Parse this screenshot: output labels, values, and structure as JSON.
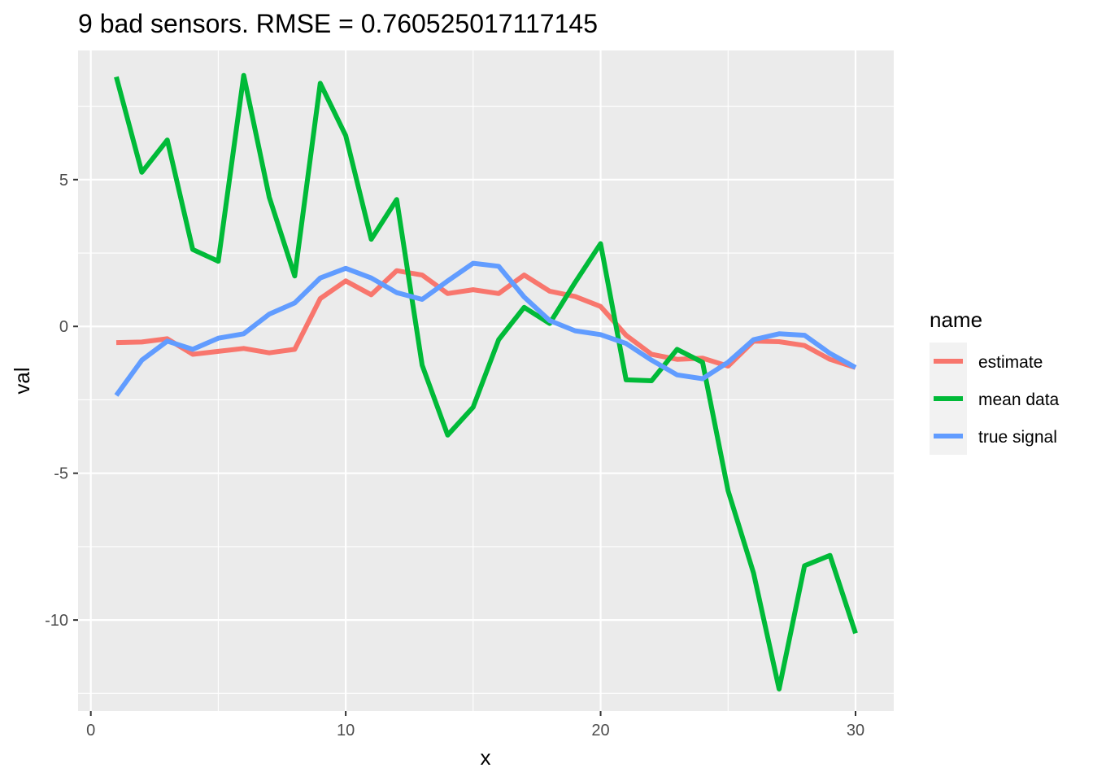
{
  "chart_data": {
    "type": "line",
    "title": "9 bad sensors. RMSE = 0.760525017117145",
    "xlabel": "x",
    "ylabel": "val",
    "xlim": [
      -0.5,
      31.5
    ],
    "ylim": [
      -13.1,
      9.4
    ],
    "x_ticks": [
      0,
      10,
      20,
      30
    ],
    "x_tick_labels": [
      "0",
      "10",
      "20",
      "30"
    ],
    "y_ticks": [
      5,
      0,
      -5,
      -10
    ],
    "y_tick_labels": [
      "5",
      "0",
      "-5",
      "-10"
    ],
    "x_minor_ticks": [
      5,
      15,
      25
    ],
    "y_minor_ticks": [
      7.5,
      2.5,
      -2.5,
      -7.5,
      -12.5
    ],
    "grid": true,
    "legend": {
      "title": "name",
      "placement": "right"
    },
    "x": [
      1,
      2,
      3,
      4,
      5,
      6,
      7,
      8,
      9,
      10,
      11,
      12,
      13,
      14,
      15,
      16,
      17,
      18,
      19,
      20,
      21,
      22,
      23,
      24,
      25,
      26,
      27,
      28,
      29,
      30
    ],
    "series": [
      {
        "name": "estimate",
        "color": "#F8766D",
        "values": [
          -0.55,
          -0.53,
          -0.42,
          -0.95,
          -0.85,
          -0.75,
          -0.9,
          -0.78,
          0.95,
          1.55,
          1.08,
          1.9,
          1.75,
          1.12,
          1.25,
          1.12,
          1.75,
          1.2,
          1.02,
          0.68,
          -0.3,
          -0.95,
          -1.12,
          -1.08,
          -1.35,
          -0.5,
          -0.52,
          -0.65,
          -1.12,
          -1.4
        ]
      },
      {
        "name": "mean data",
        "color": "#00BA38",
        "values": [
          8.5,
          5.25,
          6.35,
          2.62,
          2.22,
          8.55,
          4.4,
          1.72,
          8.28,
          6.5,
          2.97,
          4.32,
          -1.32,
          -3.7,
          -2.75,
          -0.45,
          0.65,
          0.1,
          1.5,
          2.82,
          -1.82,
          -1.85,
          -0.78,
          -1.22,
          -5.6,
          -8.4,
          -12.35,
          -8.15,
          -7.8,
          -10.45
        ]
      },
      {
        "name": "true signal",
        "color": "#619CFF",
        "values": [
          -2.35,
          -1.15,
          -0.5,
          -0.78,
          -0.4,
          -0.25,
          0.42,
          0.8,
          1.65,
          1.98,
          1.65,
          1.15,
          0.92,
          1.55,
          2.15,
          2.05,
          1.0,
          0.2,
          -0.15,
          -0.28,
          -0.58,
          -1.15,
          -1.65,
          -1.78,
          -1.22,
          -0.45,
          -0.25,
          -0.3,
          -0.92,
          -1.4
        ]
      }
    ]
  }
}
